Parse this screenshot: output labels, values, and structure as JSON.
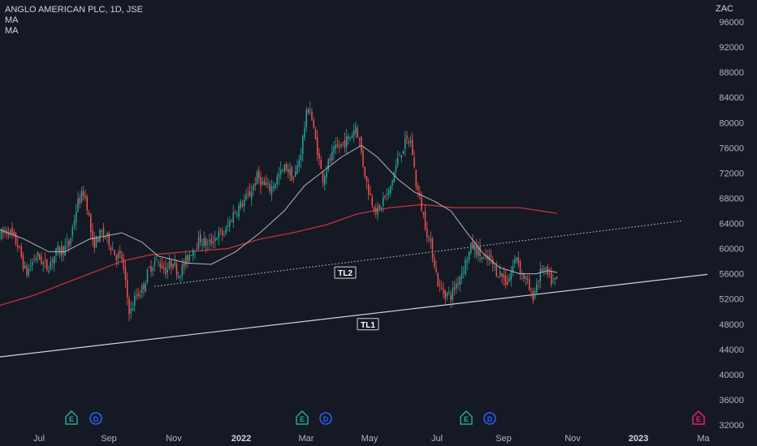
{
  "legend": {
    "symbol": "ANGLO AMERICAN PLC, 1D, JSE",
    "ma1": "MA",
    "ma2": "MA"
  },
  "currency": "ZAC",
  "colors": {
    "background": "#151924",
    "up": "#26a69a",
    "down": "#ef5350",
    "ma_fast": "#b2b5be",
    "ma_slow": "#c2343b",
    "trendline": "#d1d4dc",
    "earnings": "#26a69a",
    "dividend": "#2962ff",
    "earnings_future": "#e91e63"
  },
  "chart_data": {
    "type": "candlestick",
    "y_axis": {
      "ticks": [
        "96000",
        "92000",
        "88000",
        "84000",
        "80000",
        "76000",
        "72000",
        "68000",
        "64000",
        "60000",
        "56000",
        "52000",
        "48000",
        "44000",
        "40000",
        "36000",
        "32000"
      ],
      "range": [
        32000,
        98000
      ]
    },
    "x_axis": {
      "ticks": [
        "Jul",
        "Sep",
        "Nov",
        "2022",
        "Mar",
        "May",
        "Jul",
        "Sep",
        "Nov",
        "2023",
        "Ma"
      ],
      "bold": [
        "2022",
        "2023"
      ]
    },
    "price_path": [
      [
        0,
        62000
      ],
      [
        10,
        63000
      ],
      [
        22,
        60500
      ],
      [
        32,
        56000
      ],
      [
        45,
        59000
      ],
      [
        58,
        57000
      ],
      [
        70,
        59500
      ],
      [
        85,
        60500
      ],
      [
        95,
        67000
      ],
      [
        103,
        69000
      ],
      [
        108,
        66500
      ],
      [
        114,
        60500
      ],
      [
        125,
        62500
      ],
      [
        133,
        61500
      ],
      [
        142,
        59000
      ],
      [
        150,
        58500
      ],
      [
        157,
        52000
      ],
      [
        160,
        49500
      ],
      [
        167,
        52500
      ],
      [
        175,
        53500
      ],
      [
        183,
        56500
      ],
      [
        190,
        58000
      ],
      [
        198,
        57500
      ],
      [
        205,
        56500
      ],
      [
        212,
        58000
      ],
      [
        220,
        56000
      ],
      [
        227,
        57500
      ],
      [
        237,
        60000
      ],
      [
        247,
        61500
      ],
      [
        256,
        60500
      ],
      [
        266,
        62000
      ],
      [
        277,
        62500
      ],
      [
        287,
        65500
      ],
      [
        297,
        67000
      ],
      [
        307,
        68500
      ],
      [
        317,
        71500
      ],
      [
        325,
        70000
      ],
      [
        333,
        69500
      ],
      [
        343,
        71500
      ],
      [
        352,
        73000
      ],
      [
        362,
        71000
      ],
      [
        370,
        75000
      ],
      [
        376,
        80500
      ],
      [
        381,
        83000
      ],
      [
        385,
        79500
      ],
      [
        391,
        75500
      ],
      [
        397,
        71000
      ],
      [
        404,
        73500
      ],
      [
        412,
        75500
      ],
      [
        420,
        76500
      ],
      [
        430,
        77500
      ],
      [
        438,
        79500
      ],
      [
        442,
        77500
      ],
      [
        447,
        73500
      ],
      [
        452,
        70000
      ],
      [
        458,
        67500
      ],
      [
        466,
        65500
      ],
      [
        472,
        68000
      ],
      [
        478,
        68500
      ],
      [
        485,
        72000
      ],
      [
        492,
        75000
      ],
      [
        500,
        77000
      ],
      [
        506,
        77000
      ],
      [
        512,
        70500
      ],
      [
        519,
        66500
      ],
      [
        526,
        62500
      ],
      [
        533,
        59000
      ],
      [
        540,
        54000
      ],
      [
        547,
        53000
      ],
      [
        555,
        52500
      ],
      [
        562,
        54500
      ],
      [
        569,
        56500
      ],
      [
        575,
        58500
      ],
      [
        581,
        60500
      ],
      [
        589,
        59500
      ],
      [
        596,
        58000
      ],
      [
        603,
        58500
      ],
      [
        610,
        56500
      ],
      [
        617,
        56000
      ],
      [
        624,
        54500
      ],
      [
        630,
        56500
      ],
      [
        636,
        59000
      ],
      [
        642,
        56000
      ],
      [
        648,
        55000
      ],
      [
        655,
        52000
      ],
      [
        661,
        54500
      ],
      [
        668,
        57000
      ],
      [
        675,
        55500
      ],
      [
        681,
        54500
      ],
      [
        686,
        55000
      ]
    ],
    "ma_fast": [
      [
        0,
        63000
      ],
      [
        30,
        61500
      ],
      [
        60,
        59500
      ],
      [
        80,
        59500
      ],
      [
        110,
        61500
      ],
      [
        150,
        62500
      ],
      [
        175,
        61000
      ],
      [
        195,
        58800
      ],
      [
        230,
        57700
      ],
      [
        260,
        57500
      ],
      [
        290,
        59500
      ],
      [
        320,
        62500
      ],
      [
        350,
        66000
      ],
      [
        375,
        70000
      ],
      [
        395,
        72000
      ],
      [
        420,
        74500
      ],
      [
        445,
        76400
      ],
      [
        465,
        74500
      ],
      [
        490,
        71000
      ],
      [
        510,
        69000
      ],
      [
        535,
        67500
      ],
      [
        555,
        66000
      ],
      [
        575,
        62500
      ],
      [
        595,
        59200
      ],
      [
        615,
        57000
      ],
      [
        640,
        56000
      ],
      [
        660,
        56000
      ],
      [
        675,
        56500
      ],
      [
        686,
        56200
      ]
    ],
    "ma_slow": [
      [
        0,
        51000
      ],
      [
        40,
        52500
      ],
      [
        100,
        55500
      ],
      [
        150,
        58000
      ],
      [
        185,
        59000
      ],
      [
        230,
        59500
      ],
      [
        280,
        60000
      ],
      [
        320,
        61500
      ],
      [
        360,
        62500
      ],
      [
        400,
        63700
      ],
      [
        440,
        65500
      ],
      [
        480,
        66500
      ],
      [
        520,
        67000
      ],
      [
        560,
        66500
      ],
      [
        600,
        66500
      ],
      [
        640,
        66500
      ],
      [
        686,
        65600
      ]
    ],
    "trendlines": [
      {
        "label": "TL1",
        "from": [
          0,
          42800
        ],
        "to": [
          871,
          55900
        ],
        "style": "solid",
        "label_at": [
          453,
          48000
        ]
      },
      {
        "label": "TL2",
        "from": [
          190,
          54000
        ],
        "to": [
          840,
          64400
        ],
        "style": "dotted",
        "label_at": [
          425,
          56200
        ]
      }
    ],
    "events": [
      {
        "kind": "earnings",
        "symbol": "E",
        "x": 88
      },
      {
        "kind": "dividend",
        "symbol": "D",
        "x": 118
      },
      {
        "kind": "earnings",
        "symbol": "E",
        "x": 372
      },
      {
        "kind": "dividend",
        "symbol": "D",
        "x": 401
      },
      {
        "kind": "earnings",
        "symbol": "E",
        "x": 574
      },
      {
        "kind": "dividend",
        "symbol": "D",
        "x": 603
      },
      {
        "kind": "earnings_future",
        "symbol": "E",
        "x": 860
      }
    ]
  }
}
